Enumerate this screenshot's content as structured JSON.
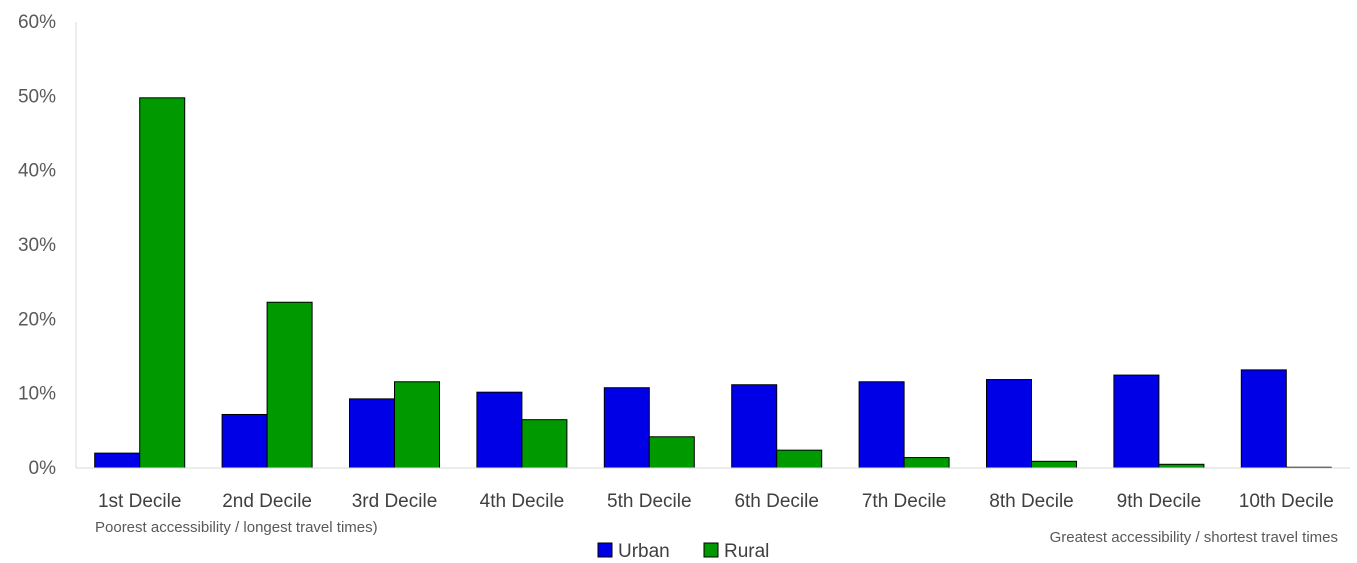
{
  "chart_data": {
    "type": "bar",
    "categories": [
      "1st Decile",
      "2nd Decile",
      "3rd Decile",
      "4th Decile",
      "5th Decile",
      "6th Decile",
      "7th Decile",
      "8th Decile",
      "9th Decile",
      "10th Decile"
    ],
    "series": [
      {
        "name": "Urban",
        "color": "#0000e6",
        "values": [
          2.0,
          7.2,
          9.3,
          10.2,
          10.8,
          11.2,
          11.6,
          11.9,
          12.5,
          13.2
        ]
      },
      {
        "name": "Rural",
        "color": "#009900",
        "values": [
          49.8,
          22.3,
          11.6,
          6.5,
          4.2,
          2.4,
          1.4,
          0.9,
          0.5,
          0.1
        ]
      }
    ],
    "ylim": [
      0,
      60
    ],
    "yticks": [
      "0%",
      "10%",
      "20%",
      "30%",
      "40%",
      "50%",
      "60%"
    ],
    "ytick_values": [
      0,
      10,
      20,
      30,
      40,
      50,
      60
    ],
    "annotations": {
      "left": "Poorest accessibility / longest travel times)",
      "right": "Greatest accessibility / shortest travel times"
    },
    "legend_position": "bottom",
    "grid": false
  }
}
